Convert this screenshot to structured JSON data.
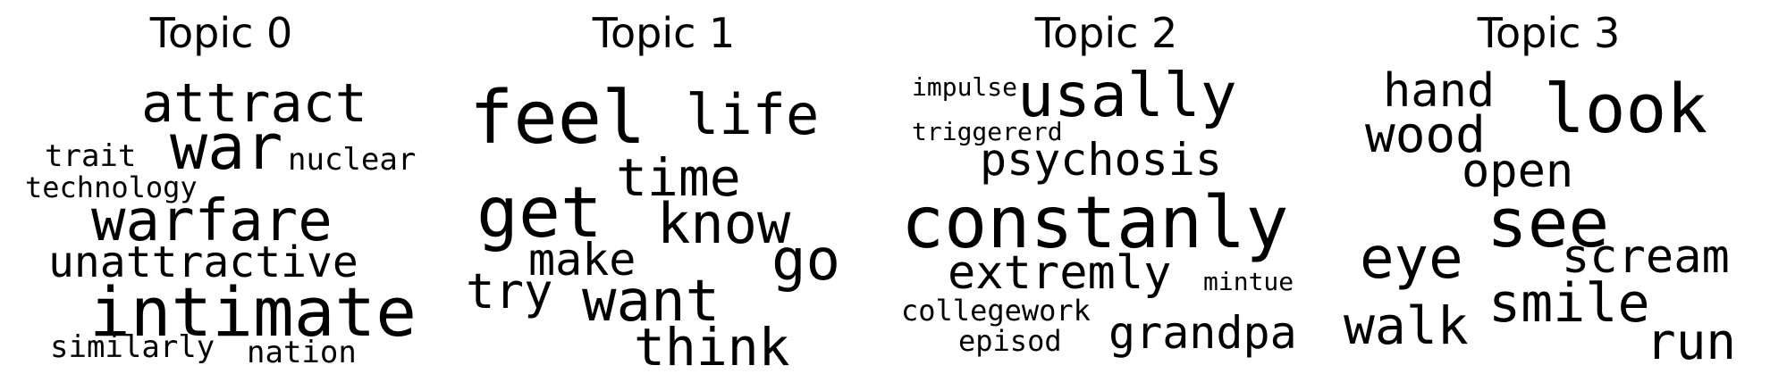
{
  "chart_data": {
    "type": "wordcloud",
    "color": "#000000",
    "topics": [
      {
        "title": "Topic 0",
        "words": [
          "attract",
          "war",
          "trait",
          "nuclear",
          "technology",
          "warfare",
          "unattractive",
          "intimate",
          "similarly",
          "nation"
        ]
      },
      {
        "title": "Topic 1",
        "words": [
          "feel",
          "life",
          "time",
          "get",
          "know",
          "make",
          "go",
          "try",
          "want",
          "think"
        ]
      },
      {
        "title": "Topic 2",
        "words": [
          "impulse",
          "usally",
          "triggererd",
          "psychosis",
          "constanly",
          "extremly",
          "mintue",
          "collegework",
          "grandpa",
          "episod"
        ]
      },
      {
        "title": "Topic 3",
        "words": [
          "hand",
          "look",
          "wood",
          "open",
          "see",
          "eye",
          "scream",
          "smile",
          "walk",
          "run"
        ]
      }
    ]
  }
}
